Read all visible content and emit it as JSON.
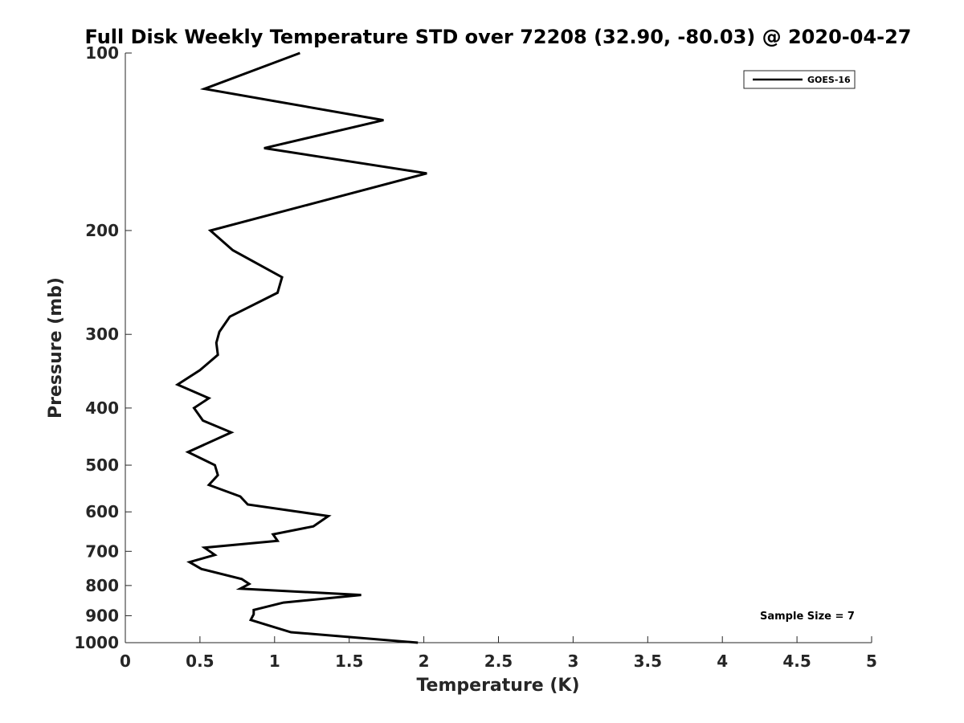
{
  "chart_data": {
    "type": "line",
    "title": "Full Disk Weekly Temperature STD over 72208 (32.90, -80.03) @ 2020-04-27",
    "xlabel": "Temperature (K)",
    "ylabel": "Pressure (mb)",
    "xlim": [
      0,
      5
    ],
    "ylim": [
      100,
      1000
    ],
    "yscale": "log",
    "y_reversed": true,
    "grid": false,
    "x_ticks": [
      "0",
      "0.5",
      "1",
      "1.5",
      "2",
      "2.5",
      "3",
      "3.5",
      "4",
      "4.5",
      "5"
    ],
    "y_ticks": [
      "100",
      "200",
      "300",
      "400",
      "500",
      "600",
      "700",
      "800",
      "900",
      "1000"
    ],
    "legend_position": "top-right",
    "series": [
      {
        "name": "GOES-16",
        "color": "#000000",
        "points": [
          [
            1.17,
            100
          ],
          [
            0.53,
            115
          ],
          [
            1.73,
            130
          ],
          [
            0.93,
            145
          ],
          [
            2.02,
            160
          ],
          [
            0.57,
            200
          ],
          [
            0.72,
            216
          ],
          [
            1.05,
            240
          ],
          [
            1.02,
            255
          ],
          [
            0.7,
            280
          ],
          [
            0.63,
            297
          ],
          [
            0.61,
            310
          ],
          [
            0.62,
            325
          ],
          [
            0.5,
            345
          ],
          [
            0.35,
            365
          ],
          [
            0.56,
            385
          ],
          [
            0.46,
            400
          ],
          [
            0.52,
            420
          ],
          [
            0.71,
            440
          ],
          [
            0.42,
            475
          ],
          [
            0.6,
            500
          ],
          [
            0.62,
            520
          ],
          [
            0.56,
            540
          ],
          [
            0.77,
            565
          ],
          [
            0.82,
            583
          ],
          [
            1.36,
            610
          ],
          [
            1.26,
            635
          ],
          [
            0.99,
            655
          ],
          [
            1.02,
            672
          ],
          [
            0.53,
            690
          ],
          [
            0.6,
            710
          ],
          [
            0.43,
            730
          ],
          [
            0.51,
            750
          ],
          [
            0.78,
            780
          ],
          [
            0.83,
            795
          ],
          [
            0.77,
            810
          ],
          [
            1.58,
            830
          ],
          [
            1.06,
            855
          ],
          [
            0.86,
            880
          ],
          [
            0.86,
            895
          ],
          [
            0.84,
            915
          ],
          [
            0.96,
            935
          ],
          [
            1.11,
            960
          ],
          [
            1.96,
            1000
          ]
        ]
      }
    ]
  },
  "annotation": "Sample Size = 7"
}
